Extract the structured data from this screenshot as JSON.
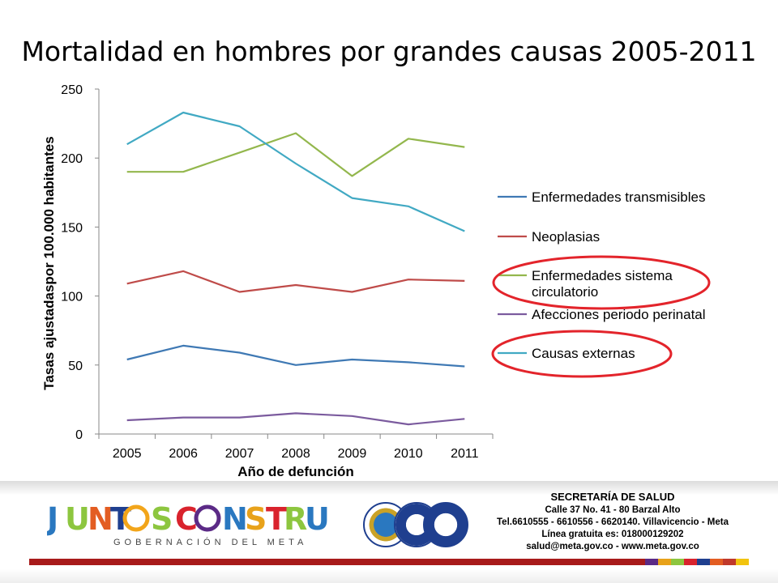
{
  "slide": {
    "title": "Mortalidad en hombres por grandes causas 2005-2011"
  },
  "chart_data": {
    "type": "line",
    "title": "Mortalidad en hombres por grandes causas 2005-2011",
    "xlabel": "Año de defunción",
    "ylabel": "Tasas ajustadaspor 100.000 habitantes",
    "categories": [
      "2005",
      "2006",
      "2007",
      "2008",
      "2009",
      "2010",
      "2011"
    ],
    "ylim": [
      0,
      250
    ],
    "yticks": [
      0,
      50,
      100,
      150,
      200,
      250
    ],
    "grid": false,
    "legend_position": "right",
    "series": [
      {
        "name": "Enfermedades transmisibles",
        "color": "#3f79b4",
        "values": [
          54,
          64,
          59,
          50,
          54,
          52,
          49
        ]
      },
      {
        "name": "Neoplasias",
        "color": "#bf4b49",
        "values": [
          109,
          118,
          103,
          108,
          103,
          112,
          111
        ]
      },
      {
        "name": "Enfermedades sistema circulatorio",
        "color": "#93b74d",
        "values": [
          190,
          190,
          204,
          218,
          187,
          214,
          208
        ]
      },
      {
        "name": "Afecciones periodo perinatal",
        "color": "#7b5b9e",
        "values": [
          10,
          12,
          12,
          15,
          13,
          7,
          11
        ]
      },
      {
        "name": "Causas externas",
        "color": "#41a9c3",
        "values": [
          210,
          233,
          223,
          196,
          171,
          165,
          147
        ]
      }
    ],
    "annotations": [
      {
        "type": "ellipse-highlight",
        "target": "Enfermedades sistema circulatorio",
        "color": "#e3242b"
      },
      {
        "type": "ellipse-highlight",
        "target": "Causas externas",
        "color": "#e3242b"
      }
    ]
  },
  "footer": {
    "logo_text": "JUNTOS CONSTRUYENDO",
    "logo_subtext": "GOBERNACIÓN DEL META",
    "seals": [
      "meta-shield-icon",
      "iso-9001-seal-icon",
      "iqnet-seal-icon"
    ],
    "secretaria": {
      "head": "SECRETARÍA DE SALUD",
      "lines": [
        "Calle 37 No. 41 - 80 Barzal Alto",
        "Tel.6610555 - 6610556 - 6620140. Villavicencio - Meta",
        "Línea gratuita es: 018000129202",
        "salud@meta.gov.co - www.meta.gov.co"
      ]
    },
    "strip_colors": [
      "#5b2a86",
      "#e8a21a",
      "#8dc63f",
      "#d9232d",
      "#1f3f8f",
      "#e35d22",
      "#c0392b",
      "#f2c40f"
    ]
  }
}
